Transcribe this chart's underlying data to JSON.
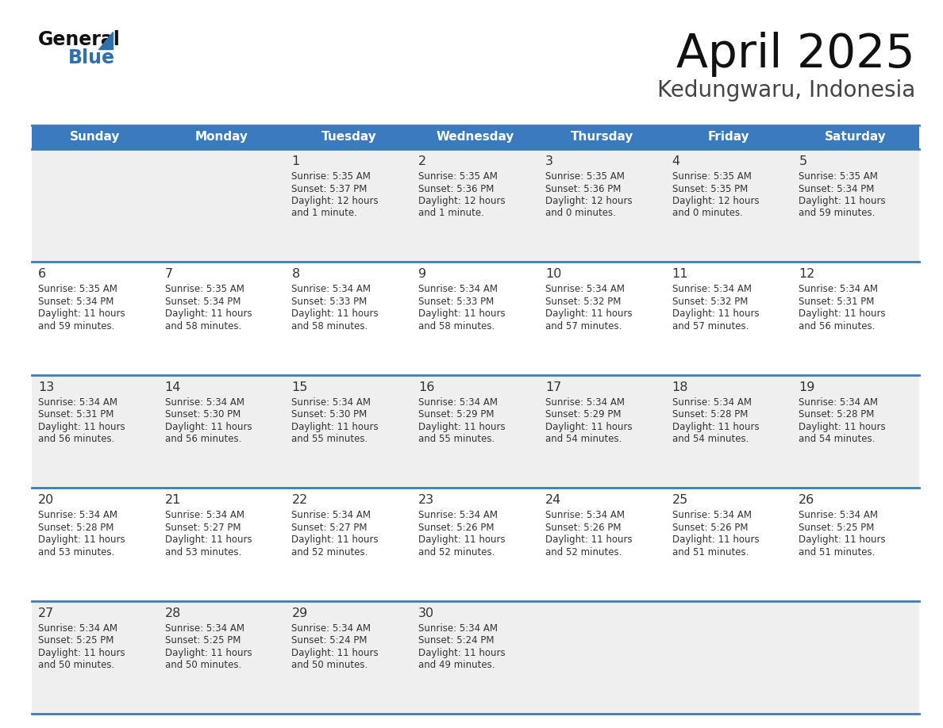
{
  "title": "April 2025",
  "subtitle": "Kedungwaru, Indonesia",
  "header_bg_color": "#3a7bbf",
  "header_text_color": "#ffffff",
  "row_bg_odd": "#efefef",
  "row_bg_even": "#ffffff",
  "border_color": "#3a7bbf",
  "text_color": "#333333",
  "days_of_week": [
    "Sunday",
    "Monday",
    "Tuesday",
    "Wednesday",
    "Thursday",
    "Friday",
    "Saturday"
  ],
  "calendar_data": [
    [
      {
        "day": "",
        "sunrise": "",
        "sunset": "",
        "daylight": ""
      },
      {
        "day": "",
        "sunrise": "",
        "sunset": "",
        "daylight": ""
      },
      {
        "day": "1",
        "sunrise": "Sunrise: 5:35 AM",
        "sunset": "Sunset: 5:37 PM",
        "daylight": "Daylight: 12 hours\nand 1 minute."
      },
      {
        "day": "2",
        "sunrise": "Sunrise: 5:35 AM",
        "sunset": "Sunset: 5:36 PM",
        "daylight": "Daylight: 12 hours\nand 1 minute."
      },
      {
        "day": "3",
        "sunrise": "Sunrise: 5:35 AM",
        "sunset": "Sunset: 5:36 PM",
        "daylight": "Daylight: 12 hours\nand 0 minutes."
      },
      {
        "day": "4",
        "sunrise": "Sunrise: 5:35 AM",
        "sunset": "Sunset: 5:35 PM",
        "daylight": "Daylight: 12 hours\nand 0 minutes."
      },
      {
        "day": "5",
        "sunrise": "Sunrise: 5:35 AM",
        "sunset": "Sunset: 5:34 PM",
        "daylight": "Daylight: 11 hours\nand 59 minutes."
      }
    ],
    [
      {
        "day": "6",
        "sunrise": "Sunrise: 5:35 AM",
        "sunset": "Sunset: 5:34 PM",
        "daylight": "Daylight: 11 hours\nand 59 minutes."
      },
      {
        "day": "7",
        "sunrise": "Sunrise: 5:35 AM",
        "sunset": "Sunset: 5:34 PM",
        "daylight": "Daylight: 11 hours\nand 58 minutes."
      },
      {
        "day": "8",
        "sunrise": "Sunrise: 5:34 AM",
        "sunset": "Sunset: 5:33 PM",
        "daylight": "Daylight: 11 hours\nand 58 minutes."
      },
      {
        "day": "9",
        "sunrise": "Sunrise: 5:34 AM",
        "sunset": "Sunset: 5:33 PM",
        "daylight": "Daylight: 11 hours\nand 58 minutes."
      },
      {
        "day": "10",
        "sunrise": "Sunrise: 5:34 AM",
        "sunset": "Sunset: 5:32 PM",
        "daylight": "Daylight: 11 hours\nand 57 minutes."
      },
      {
        "day": "11",
        "sunrise": "Sunrise: 5:34 AM",
        "sunset": "Sunset: 5:32 PM",
        "daylight": "Daylight: 11 hours\nand 57 minutes."
      },
      {
        "day": "12",
        "sunrise": "Sunrise: 5:34 AM",
        "sunset": "Sunset: 5:31 PM",
        "daylight": "Daylight: 11 hours\nand 56 minutes."
      }
    ],
    [
      {
        "day": "13",
        "sunrise": "Sunrise: 5:34 AM",
        "sunset": "Sunset: 5:31 PM",
        "daylight": "Daylight: 11 hours\nand 56 minutes."
      },
      {
        "day": "14",
        "sunrise": "Sunrise: 5:34 AM",
        "sunset": "Sunset: 5:30 PM",
        "daylight": "Daylight: 11 hours\nand 56 minutes."
      },
      {
        "day": "15",
        "sunrise": "Sunrise: 5:34 AM",
        "sunset": "Sunset: 5:30 PM",
        "daylight": "Daylight: 11 hours\nand 55 minutes."
      },
      {
        "day": "16",
        "sunrise": "Sunrise: 5:34 AM",
        "sunset": "Sunset: 5:29 PM",
        "daylight": "Daylight: 11 hours\nand 55 minutes."
      },
      {
        "day": "17",
        "sunrise": "Sunrise: 5:34 AM",
        "sunset": "Sunset: 5:29 PM",
        "daylight": "Daylight: 11 hours\nand 54 minutes."
      },
      {
        "day": "18",
        "sunrise": "Sunrise: 5:34 AM",
        "sunset": "Sunset: 5:28 PM",
        "daylight": "Daylight: 11 hours\nand 54 minutes."
      },
      {
        "day": "19",
        "sunrise": "Sunrise: 5:34 AM",
        "sunset": "Sunset: 5:28 PM",
        "daylight": "Daylight: 11 hours\nand 54 minutes."
      }
    ],
    [
      {
        "day": "20",
        "sunrise": "Sunrise: 5:34 AM",
        "sunset": "Sunset: 5:28 PM",
        "daylight": "Daylight: 11 hours\nand 53 minutes."
      },
      {
        "day": "21",
        "sunrise": "Sunrise: 5:34 AM",
        "sunset": "Sunset: 5:27 PM",
        "daylight": "Daylight: 11 hours\nand 53 minutes."
      },
      {
        "day": "22",
        "sunrise": "Sunrise: 5:34 AM",
        "sunset": "Sunset: 5:27 PM",
        "daylight": "Daylight: 11 hours\nand 52 minutes."
      },
      {
        "day": "23",
        "sunrise": "Sunrise: 5:34 AM",
        "sunset": "Sunset: 5:26 PM",
        "daylight": "Daylight: 11 hours\nand 52 minutes."
      },
      {
        "day": "24",
        "sunrise": "Sunrise: 5:34 AM",
        "sunset": "Sunset: 5:26 PM",
        "daylight": "Daylight: 11 hours\nand 52 minutes."
      },
      {
        "day": "25",
        "sunrise": "Sunrise: 5:34 AM",
        "sunset": "Sunset: 5:26 PM",
        "daylight": "Daylight: 11 hours\nand 51 minutes."
      },
      {
        "day": "26",
        "sunrise": "Sunrise: 5:34 AM",
        "sunset": "Sunset: 5:25 PM",
        "daylight": "Daylight: 11 hours\nand 51 minutes."
      }
    ],
    [
      {
        "day": "27",
        "sunrise": "Sunrise: 5:34 AM",
        "sunset": "Sunset: 5:25 PM",
        "daylight": "Daylight: 11 hours\nand 50 minutes."
      },
      {
        "day": "28",
        "sunrise": "Sunrise: 5:34 AM",
        "sunset": "Sunset: 5:25 PM",
        "daylight": "Daylight: 11 hours\nand 50 minutes."
      },
      {
        "day": "29",
        "sunrise": "Sunrise: 5:34 AM",
        "sunset": "Sunset: 5:24 PM",
        "daylight": "Daylight: 11 hours\nand 50 minutes."
      },
      {
        "day": "30",
        "sunrise": "Sunrise: 5:34 AM",
        "sunset": "Sunset: 5:24 PM",
        "daylight": "Daylight: 11 hours\nand 49 minutes."
      },
      {
        "day": "",
        "sunrise": "",
        "sunset": "",
        "daylight": ""
      },
      {
        "day": "",
        "sunrise": "",
        "sunset": "",
        "daylight": ""
      },
      {
        "day": "",
        "sunrise": "",
        "sunset": "",
        "daylight": ""
      }
    ]
  ],
  "fig_width": 11.88,
  "fig_height": 9.18,
  "dpi": 100
}
